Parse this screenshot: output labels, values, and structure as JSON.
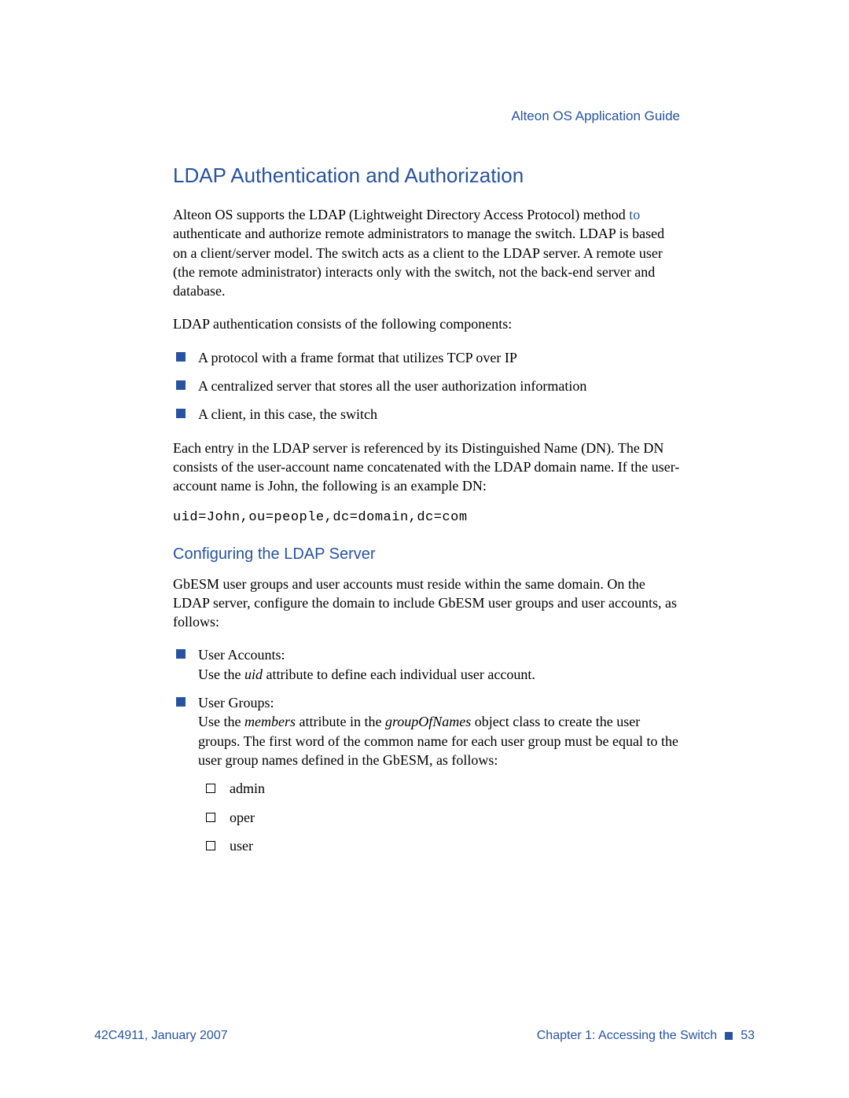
{
  "colors": {
    "accent": "#2753a0",
    "text": "#000000",
    "background": "#ffffff"
  },
  "typography": {
    "body_family": "Times New Roman",
    "body_size_pt": 13,
    "heading_family": "Arial",
    "heading_size_pt": 20,
    "subhead_family": "Segoe UI",
    "subhead_size_pt": 15,
    "code_family": "Courier New"
  },
  "header": {
    "doc_title": "Alteon OS  Application Guide"
  },
  "section": {
    "title": "LDAP Authentication and Authorization",
    "para1_a": "Alteon OS supports the LDAP (Lightweight Directory Access Protocol) method ",
    "para1_link": "to",
    "para1_b": " authenticate and authorize remote administrators to manage the switch. LDAP is based on a client/server model. The switch acts as a client to the LDAP server. A remote user (the remote administrator) interacts only with the switch, not the back-end server and database.",
    "para2": "LDAP authentication consists of the following components:",
    "components": [
      "A protocol with a frame format that utilizes TCP over IP",
      "A centralized server that stores all the user authorization information",
      "A client, in this case, the switch"
    ],
    "para3": "Each entry in the LDAP server is referenced by its Distinguished Name (DN). The DN consists of the user-account name concatenated with the LDAP domain name. If the user-account name is John, the following is an example DN:",
    "dn_example": "uid=John,ou=people,dc=domain,dc=com"
  },
  "subsection": {
    "title": "Configuring the LDAP Server",
    "para1": "GbESM user groups and user accounts must reside within the same domain. On the LDAP server, configure the domain to include GbESM user groups and user accounts, as follows:",
    "items": [
      {
        "head": "User Accounts:",
        "body_a": "Use the ",
        "em1": "uid",
        "body_b": " attribute to define each individual user account."
      },
      {
        "head": "User Groups:",
        "body_a": "Use the ",
        "em1": "members",
        "body_b": " attribute in the ",
        "em2": "groupOfNames",
        "body_c": " object class to create the user groups. The first word of the common name for each user group must be equal to the user group names defined in the GbESM, as follows:"
      }
    ],
    "group_names": [
      "admin",
      "oper",
      "user"
    ]
  },
  "footer": {
    "left": "42C4911, January 2007",
    "right_chapter": "Chapter 1:  Accessing the Switch",
    "page": "53"
  }
}
